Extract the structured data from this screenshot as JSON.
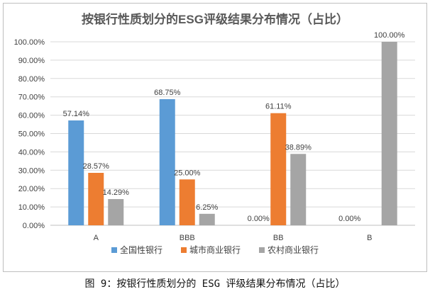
{
  "caption": "图 9：按银行性质划分的 ESG 评级结果分布情况（占比）",
  "chart_data": {
    "type": "bar",
    "title": "按银行性质划分的ESG评级结果分布情况（占比）",
    "categories": [
      "A",
      "BBB",
      "BB",
      "B"
    ],
    "ylim": [
      0,
      100
    ],
    "ytick_step": 10,
    "ytick_labels": [
      "0.00%",
      "10.00%",
      "20.00%",
      "30.00%",
      "40.00%",
      "50.00%",
      "60.00%",
      "70.00%",
      "80.00%",
      "90.00%",
      "100.00%"
    ],
    "grid": true,
    "legend_position": "bottom",
    "series": [
      {
        "name": "全国性银行",
        "color": "#5B9BD5",
        "values": [
          57.14,
          68.75,
          0,
          0
        ],
        "labels": [
          "57.14%",
          "68.75%",
          "0.00%",
          "0.00%"
        ]
      },
      {
        "name": "城市商业银行",
        "color": "#ED7D31",
        "values": [
          28.57,
          25.0,
          61.11,
          0
        ],
        "labels": [
          "28.57%",
          "25.00%",
          "61.11%",
          ""
        ]
      },
      {
        "name": "农村商业银行",
        "color": "#A5A5A5",
        "values": [
          14.29,
          6.25,
          38.89,
          100
        ],
        "labels": [
          "14.29%",
          "6.25%",
          "38.89%",
          "100.00%"
        ]
      }
    ]
  }
}
